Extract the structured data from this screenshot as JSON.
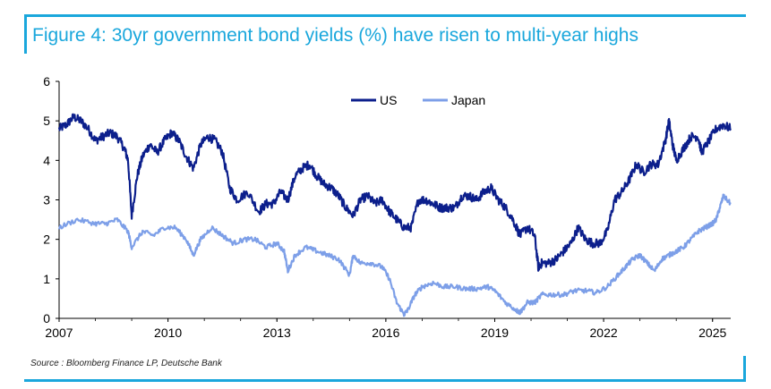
{
  "figure": {
    "title": "Figure 4: 30yr government bond yields (%) have risen to multi-year highs",
    "source": "Source : Bloomberg Finance LP, Deutsche Bank"
  },
  "chart_data": {
    "type": "line",
    "title": "Figure 4: 30yr government bond yields (%) have risen to multi-year highs",
    "xlabel": "",
    "ylabel": "",
    "xlim": [
      2007,
      2025.5
    ],
    "ylim": [
      0,
      6
    ],
    "x_ticks": [
      2007,
      2010,
      2013,
      2016,
      2019,
      2022,
      2025
    ],
    "y_ticks": [
      0,
      1,
      2,
      3,
      4,
      5,
      6
    ],
    "grid": false,
    "legend_position": "top-center",
    "series": [
      {
        "name": "US",
        "color": "#0c1f8c",
        "x": [
          2007.0,
          2007.2,
          2007.4,
          2007.6,
          2007.8,
          2008.0,
          2008.2,
          2008.4,
          2008.6,
          2008.8,
          2008.9,
          2009.0,
          2009.15,
          2009.3,
          2009.5,
          2009.7,
          2009.9,
          2010.1,
          2010.3,
          2010.5,
          2010.7,
          2010.9,
          2011.1,
          2011.3,
          2011.5,
          2011.7,
          2011.9,
          2012.2,
          2012.5,
          2012.7,
          2012.9,
          2013.1,
          2013.3,
          2013.5,
          2013.7,
          2013.9,
          2014.1,
          2014.3,
          2014.5,
          2014.7,
          2014.9,
          2015.1,
          2015.3,
          2015.5,
          2015.7,
          2015.9,
          2016.1,
          2016.3,
          2016.5,
          2016.7,
          2016.9,
          2017.1,
          2017.3,
          2017.5,
          2017.7,
          2017.9,
          2018.1,
          2018.3,
          2018.5,
          2018.7,
          2018.9,
          2019.1,
          2019.3,
          2019.5,
          2019.7,
          2019.9,
          2020.1,
          2020.2,
          2020.3,
          2020.5,
          2020.7,
          2020.9,
          2021.1,
          2021.3,
          2021.5,
          2021.7,
          2021.9,
          2022.1,
          2022.3,
          2022.5,
          2022.7,
          2022.9,
          2023.1,
          2023.3,
          2023.5,
          2023.7,
          2023.8,
          2023.9,
          2024.0,
          2024.2,
          2024.4,
          2024.6,
          2024.7,
          2024.9,
          2025.1,
          2025.3,
          2025.5
        ],
        "values": [
          4.8,
          4.9,
          5.1,
          5.0,
          4.8,
          4.5,
          4.6,
          4.7,
          4.6,
          4.3,
          4.0,
          2.6,
          3.6,
          4.1,
          4.4,
          4.2,
          4.5,
          4.7,
          4.5,
          4.1,
          3.8,
          4.4,
          4.6,
          4.5,
          4.2,
          3.3,
          3.0,
          3.2,
          2.7,
          2.9,
          2.9,
          3.2,
          3.0,
          3.6,
          3.8,
          3.9,
          3.6,
          3.4,
          3.3,
          3.1,
          2.8,
          2.6,
          3.0,
          3.1,
          2.9,
          3.0,
          2.7,
          2.5,
          2.3,
          2.3,
          3.0,
          3.0,
          2.9,
          2.8,
          2.8,
          2.8,
          3.1,
          3.1,
          3.0,
          3.2,
          3.3,
          3.0,
          2.8,
          2.5,
          2.1,
          2.3,
          2.1,
          1.3,
          1.4,
          1.4,
          1.5,
          1.7,
          1.9,
          2.3,
          2.0,
          1.9,
          1.9,
          2.2,
          3.0,
          3.2,
          3.5,
          3.9,
          3.7,
          3.9,
          3.9,
          4.5,
          5.0,
          4.4,
          4.0,
          4.3,
          4.6,
          4.6,
          4.2,
          4.5,
          4.8,
          4.9,
          4.8
        ]
      },
      {
        "name": "Japan",
        "color": "#7d9fe8",
        "x": [
          2007.0,
          2007.5,
          2008.0,
          2008.3,
          2008.6,
          2008.9,
          2009.0,
          2009.3,
          2009.6,
          2009.9,
          2010.2,
          2010.5,
          2010.7,
          2010.9,
          2011.2,
          2011.5,
          2011.8,
          2012.1,
          2012.4,
          2012.7,
          2013.0,
          2013.2,
          2013.3,
          2013.5,
          2013.8,
          2014.1,
          2014.4,
          2014.7,
          2015.0,
          2015.1,
          2015.3,
          2015.6,
          2015.9,
          2016.1,
          2016.3,
          2016.5,
          2016.6,
          2016.8,
          2017.0,
          2017.3,
          2017.6,
          2017.9,
          2018.2,
          2018.5,
          2018.8,
          2019.0,
          2019.3,
          2019.6,
          2019.7,
          2019.9,
          2020.1,
          2020.3,
          2020.6,
          2020.9,
          2021.2,
          2021.5,
          2021.8,
          2022.1,
          2022.4,
          2022.6,
          2022.8,
          2023.0,
          2023.2,
          2023.4,
          2023.6,
          2023.8,
          2024.0,
          2024.2,
          2024.4,
          2024.6,
          2024.8,
          2025.0,
          2025.1,
          2025.2,
          2025.3,
          2025.5
        ],
        "values": [
          2.3,
          2.5,
          2.4,
          2.4,
          2.5,
          2.2,
          1.8,
          2.2,
          2.1,
          2.3,
          2.3,
          2.0,
          1.6,
          2.0,
          2.3,
          2.1,
          1.9,
          2.0,
          2.0,
          1.8,
          1.9,
          1.7,
          1.2,
          1.6,
          1.8,
          1.7,
          1.6,
          1.5,
          1.1,
          1.6,
          1.4,
          1.4,
          1.3,
          1.0,
          0.4,
          0.1,
          0.2,
          0.6,
          0.8,
          0.9,
          0.8,
          0.8,
          0.75,
          0.75,
          0.8,
          0.7,
          0.4,
          0.2,
          0.15,
          0.4,
          0.4,
          0.6,
          0.6,
          0.6,
          0.7,
          0.7,
          0.65,
          0.8,
          1.1,
          1.3,
          1.5,
          1.6,
          1.4,
          1.2,
          1.5,
          1.6,
          1.7,
          1.8,
          2.0,
          2.2,
          2.3,
          2.4,
          2.5,
          2.8,
          3.1,
          2.9
        ]
      }
    ]
  }
}
